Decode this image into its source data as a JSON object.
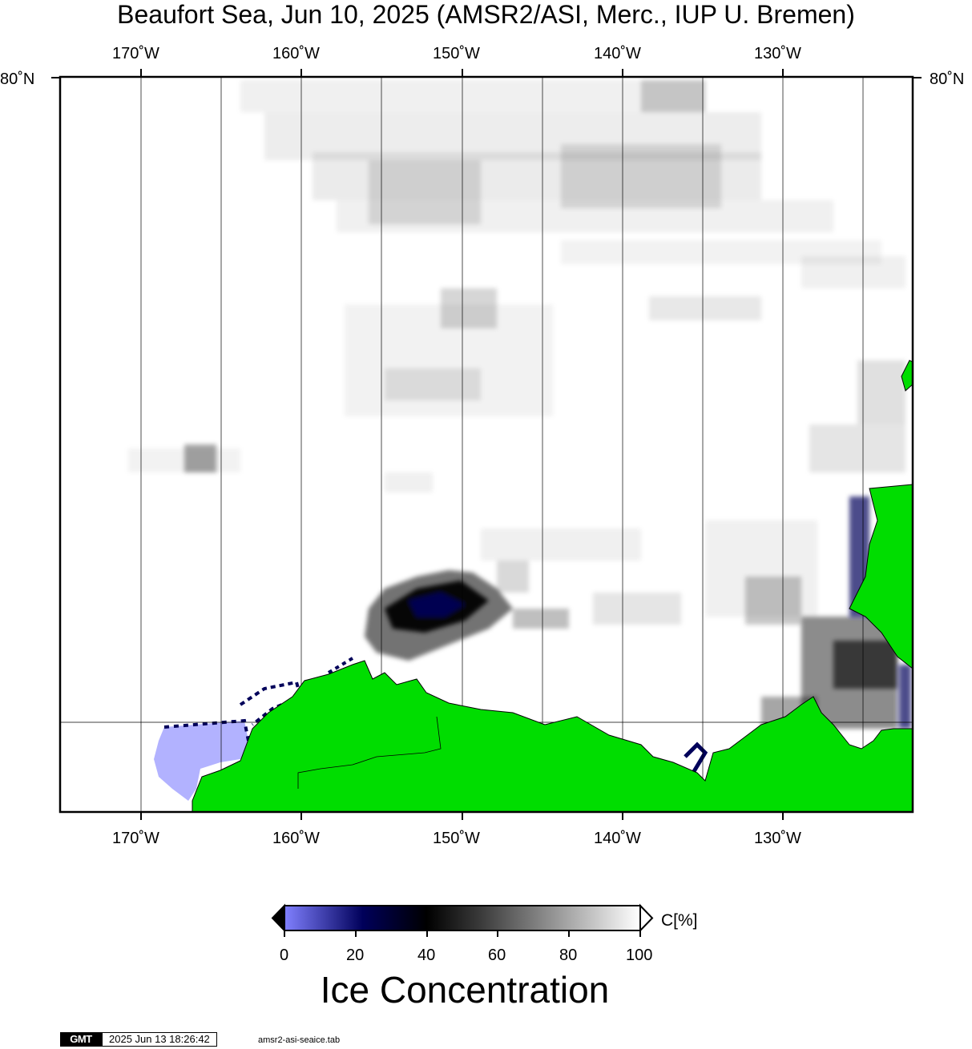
{
  "title": "Beaufort Sea, Jun 10, 2025 (AMSR2/ASI, Merc., IUP U. Bremen)",
  "top_lon_labels": [
    "170˚W",
    "160˚W",
    "150˚W",
    "140˚W",
    "130˚W"
  ],
  "bottom_lon_labels": [
    "170˚W",
    "160˚W",
    "150˚W",
    "140˚W",
    "130˚W"
  ],
  "lat_label_left": "80˚N",
  "lat_label_right": "80˚N",
  "colorbar": {
    "ticks": [
      "0",
      "20",
      "40",
      "60",
      "80",
      "100"
    ],
    "unit": "C[%]",
    "label": "Ice Concentration",
    "colors": {
      "low": "#8080ff",
      "mid_low": "#00005a",
      "mid": "#000000",
      "high": "#ffffff"
    }
  },
  "land_color": "#00dd00",
  "low_ice_color": "#b2b2ff",
  "footer": {
    "logo": "GMT",
    "timestamp": "2025 Jun 13 18:26:42",
    "source": "amsr2-asi-seaice.tab"
  }
}
